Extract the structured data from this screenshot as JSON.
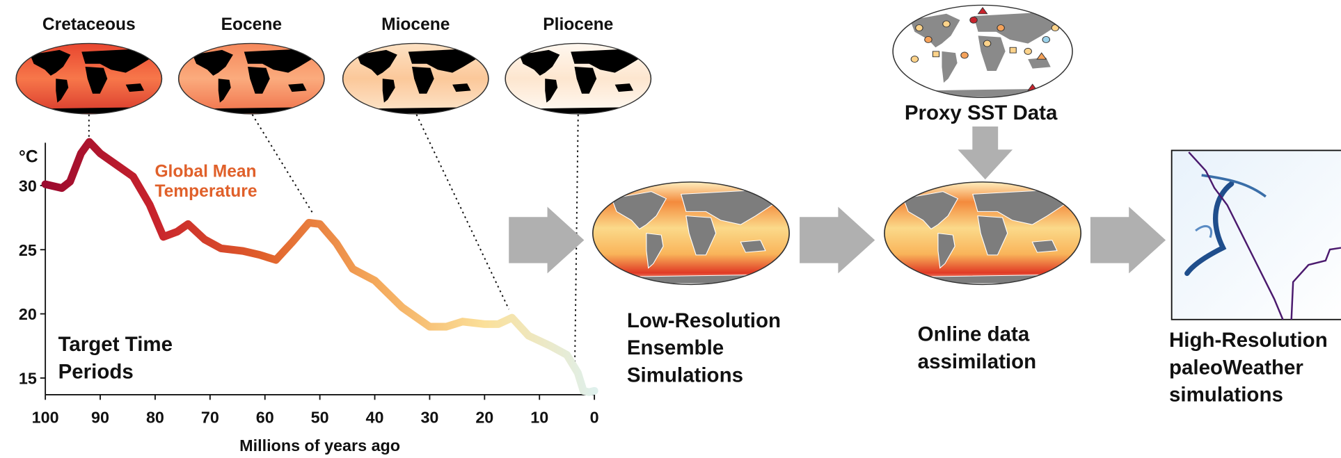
{
  "chart_data": {
    "type": "line",
    "x_label": "Millions of years ago",
    "y_unit": "°C",
    "annotation": "Target Time Periods",
    "x": [
      100,
      97,
      95.5,
      93.5,
      92,
      90,
      87,
      84,
      81,
      78.5,
      76,
      74,
      71,
      68,
      64,
      61,
      58,
      55,
      52,
      50,
      47,
      44,
      40,
      35,
      30,
      27,
      24,
      20,
      17.5,
      15,
      12,
      8,
      5,
      3,
      2,
      1,
      0
    ],
    "series": [
      {
        "name": "Global Mean Temperature",
        "color": "#e0602a",
        "gradient": [
          "#9b0a2e",
          "#c8232c",
          "#e0602a",
          "#f4a85a",
          "#fbe09a",
          "#dff0ec"
        ],
        "values": [
          30.1,
          29.8,
          30.3,
          32.5,
          33.4,
          32.5,
          31.6,
          30.7,
          28.5,
          26.0,
          26.4,
          27.0,
          25.8,
          25.1,
          24.9,
          24.6,
          24.2,
          25.6,
          27.1,
          27.0,
          25.5,
          23.5,
          22.6,
          20.5,
          19.0,
          19.0,
          19.4,
          19.2,
          19.2,
          19.7,
          18.3,
          17.5,
          16.8,
          15.4,
          14.0,
          13.9,
          14.0
        ]
      }
    ],
    "xlim": [
      100,
      0
    ],
    "xticks": [
      100,
      90,
      80,
      70,
      60,
      50,
      40,
      30,
      20,
      10,
      0
    ],
    "ylim": [
      13.7,
      34
    ],
    "yticks": [
      15,
      20,
      25,
      30
    ]
  },
  "periods": [
    "Cretaceous",
    "Eocene",
    "Miocene",
    "Pliocene"
  ],
  "steps": {
    "proxy": "Proxy SST Data",
    "low_res": "Low-Resolution Ensemble Simulations",
    "assimilation": "Online data assimilation",
    "high_res": "High-Resolution paleoWeather simulations"
  }
}
